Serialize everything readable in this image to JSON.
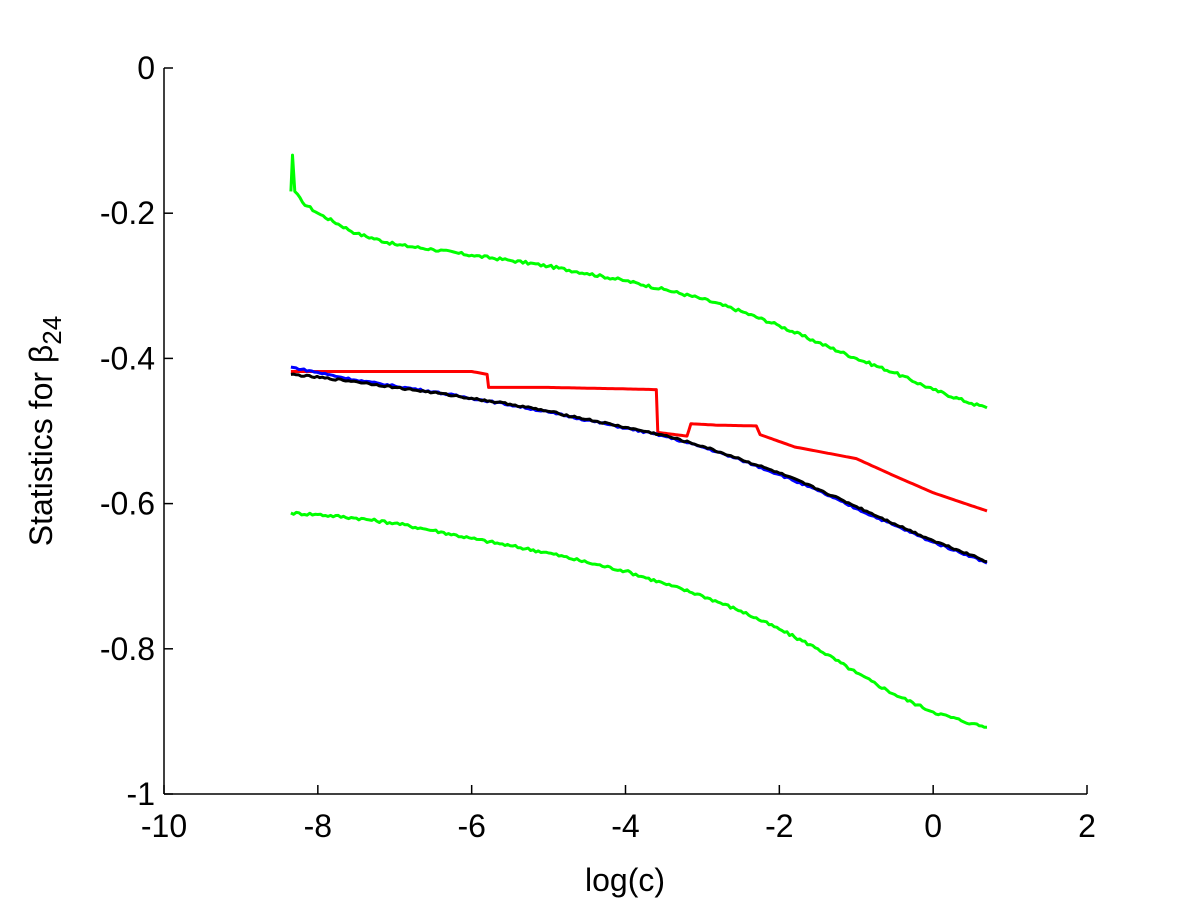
{
  "chart_data": {
    "type": "line",
    "title": "",
    "xlabel": "log(c)",
    "ylabel": {
      "prefix": "Statistics for ",
      "symbol": "β",
      "subscript": "24"
    },
    "xlim": [
      -10,
      2
    ],
    "ylim": [
      -1,
      0
    ],
    "xticks": [
      -10,
      -8,
      -6,
      -4,
      -2,
      0,
      2
    ],
    "yticks": [
      0,
      -0.2,
      -0.4,
      -0.6,
      -0.8,
      -1
    ],
    "xtick_labels": [
      "-10",
      "-8",
      "-6",
      "-4",
      "-2",
      "0",
      "2"
    ],
    "ytick_labels": [
      "0",
      "-0.2",
      "-0.4",
      "-0.6",
      "-0.8",
      "-1"
    ],
    "grid": false,
    "legend": "none",
    "series": [
      {
        "color": "#00ff00",
        "x": [
          -8.35,
          -8.33,
          -8.3,
          -8.2,
          -8.0,
          -7.5,
          -7.0,
          -6.5,
          -6.0,
          -5.5,
          -5.0,
          -4.5,
          -4.0,
          -3.5,
          -3.0,
          -2.5,
          -2.0,
          -1.5,
          -1.0,
          -0.5,
          0.0,
          0.5,
          0.7
        ],
        "y": [
          -0.17,
          -0.12,
          -0.17,
          -0.185,
          -0.2,
          -0.228,
          -0.243,
          -0.25,
          -0.258,
          -0.265,
          -0.273,
          -0.283,
          -0.293,
          -0.305,
          -0.318,
          -0.335,
          -0.355,
          -0.378,
          -0.4,
          -0.42,
          -0.443,
          -0.462,
          -0.468
        ]
      },
      {
        "color": "#00ff00",
        "x": [
          -8.35,
          -8.0,
          -7.5,
          -7.0,
          -6.5,
          -6.0,
          -5.5,
          -5.0,
          -4.5,
          -4.0,
          -3.5,
          -3.0,
          -2.5,
          -2.0,
          -1.5,
          -1.0,
          -0.5,
          0.0,
          0.5,
          0.7
        ],
        "y": [
          -0.613,
          -0.615,
          -0.62,
          -0.627,
          -0.637,
          -0.648,
          -0.658,
          -0.668,
          -0.681,
          -0.693,
          -0.71,
          -0.727,
          -0.748,
          -0.773,
          -0.8,
          -0.833,
          -0.863,
          -0.887,
          -0.903,
          -0.908
        ]
      },
      {
        "color": "#ff0000",
        "x": [
          -8.35,
          -6.0,
          -5.8,
          -5.78,
          -5.0,
          -4.0,
          -3.6,
          -3.58,
          -3.2,
          -3.15,
          -2.8,
          -2.3,
          -2.25,
          -1.8,
          -1.5,
          -1.0,
          -0.5,
          0.0,
          0.5,
          0.7
        ],
        "y": [
          -0.418,
          -0.418,
          -0.422,
          -0.44,
          -0.44,
          -0.442,
          -0.443,
          -0.502,
          -0.507,
          -0.49,
          -0.492,
          -0.493,
          -0.505,
          -0.522,
          -0.528,
          -0.538,
          -0.562,
          -0.585,
          -0.603,
          -0.61
        ]
      },
      {
        "color": "#0000ff",
        "x": [
          -8.35,
          -7.5,
          -7.0,
          -6.5,
          -6.0,
          -5.5,
          -5.0,
          -4.5,
          -4.0,
          -3.5,
          -3.0,
          -2.5,
          -2.0,
          -1.5,
          -1.0,
          -0.5,
          0.0,
          0.5,
          0.7
        ],
        "y": [
          -0.412,
          -0.43,
          -0.438,
          -0.446,
          -0.455,
          -0.464,
          -0.474,
          -0.485,
          -0.496,
          -0.507,
          -0.522,
          -0.54,
          -0.56,
          -0.582,
          -0.607,
          -0.63,
          -0.653,
          -0.673,
          -0.682
        ]
      },
      {
        "color": "#000000",
        "x": [
          -8.35,
          -7.5,
          -7.0,
          -6.5,
          -6.0,
          -5.5,
          -5.0,
          -4.5,
          -4.0,
          -3.5,
          -3.0,
          -2.5,
          -2.0,
          -1.5,
          -1.0,
          -0.5,
          0.0,
          0.5,
          0.7
        ],
        "y": [
          -0.422,
          -0.432,
          -0.44,
          -0.447,
          -0.455,
          -0.463,
          -0.473,
          -0.484,
          -0.495,
          -0.506,
          -0.521,
          -0.539,
          -0.558,
          -0.58,
          -0.604,
          -0.628,
          -0.651,
          -0.671,
          -0.68
        ]
      }
    ]
  }
}
